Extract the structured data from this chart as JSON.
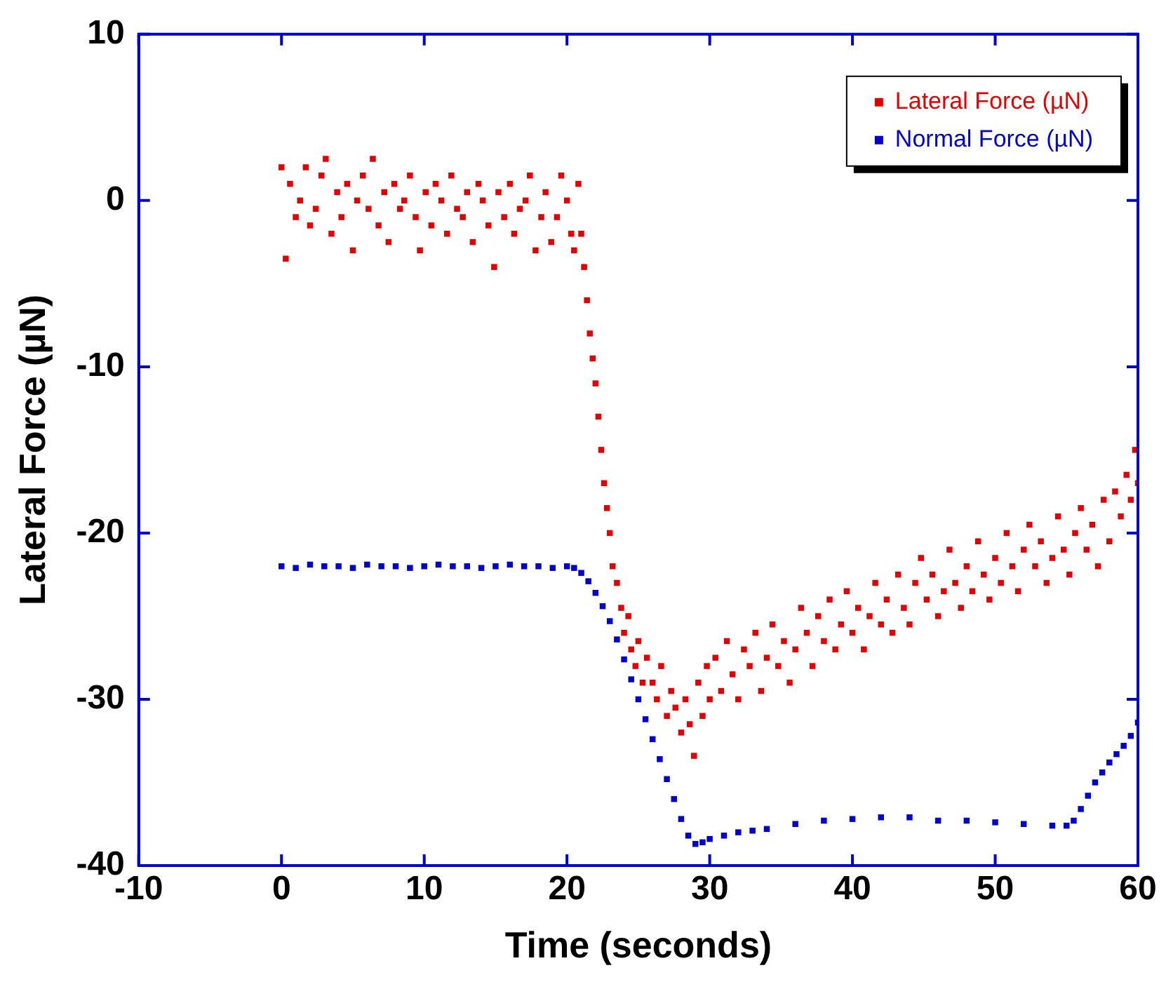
{
  "chart_data": {
    "type": "scatter",
    "xlabel": "Time (seconds)",
    "ylabel": "Lateral Force (µN)",
    "xlim": [
      -10,
      60
    ],
    "xticks": [
      -10,
      0,
      10,
      20,
      30,
      40,
      50,
      60
    ],
    "ylim": [
      -40,
      10
    ],
    "yticks": [
      -40,
      -30,
      -20,
      -10,
      0,
      10
    ],
    "grid": false,
    "legend": "top right",
    "marker": "square",
    "series": [
      {
        "name": "Lateral Force (µN)",
        "color": "#e00000",
        "x": [
          0,
          0.3,
          0.6,
          1,
          1.3,
          1.7,
          2,
          2.4,
          2.8,
          3.1,
          3.5,
          3.9,
          4.2,
          4.6,
          5,
          5.3,
          5.7,
          6.1,
          6.4,
          6.8,
          7.2,
          7.5,
          7.9,
          8.3,
          8.6,
          9,
          9.4,
          9.7,
          10.1,
          10.5,
          10.8,
          11.2,
          11.6,
          11.9,
          12.3,
          12.7,
          13,
          13.4,
          13.8,
          14.1,
          14.5,
          14.9,
          15.2,
          15.6,
          16,
          16.3,
          16.7,
          17.1,
          17.4,
          17.8,
          18.2,
          18.5,
          18.9,
          19.3,
          19.6,
          20,
          20.3,
          20.5,
          20.8,
          21,
          21.2,
          21.4,
          21.6,
          21.8,
          22,
          22.2,
          22.4,
          22.6,
          22.8,
          23,
          23.2,
          23.5,
          23.8,
          24,
          24.3,
          24.5,
          24.8,
          25,
          25.3,
          25.6,
          26,
          26.3,
          26.6,
          27,
          27.3,
          27.6,
          28,
          28.3,
          28.6,
          28.9,
          29.2,
          29.5,
          29.8,
          30,
          30.4,
          30.8,
          31.2,
          31.6,
          32,
          32.4,
          32.8,
          33.2,
          33.6,
          34,
          34.4,
          34.8,
          35.2,
          35.6,
          36,
          36.4,
          36.8,
          37.2,
          37.6,
          38,
          38.4,
          38.8,
          39.2,
          39.6,
          40,
          40.4,
          40.8,
          41.2,
          41.6,
          42,
          42.4,
          42.8,
          43.2,
          43.6,
          44,
          44.4,
          44.8,
          45.2,
          45.6,
          46,
          46.4,
          46.8,
          47.2,
          47.6,
          48,
          48.4,
          48.8,
          49.2,
          49.6,
          50,
          50.4,
          50.8,
          51.2,
          51.6,
          52,
          52.4,
          52.8,
          53.2,
          53.6,
          54,
          54.4,
          54.8,
          55.2,
          55.6,
          56,
          56.4,
          56.8,
          57.2,
          57.6,
          58,
          58.4,
          58.8,
          59.2,
          59.5,
          59.8,
          60
        ],
        "values": [
          2,
          -3.5,
          1,
          -1,
          0,
          2,
          -1.5,
          -0.5,
          1.5,
          2.5,
          -2,
          0.5,
          -1,
          1,
          -3,
          0,
          1.5,
          -0.5,
          2.5,
          -1.5,
          0.5,
          -2.5,
          1,
          -0.5,
          0,
          1.5,
          -1,
          -3,
          0.5,
          -1.5,
          1,
          0,
          -2,
          1.5,
          -0.5,
          -1,
          0.5,
          -2.5,
          1,
          0,
          -1.5,
          -4,
          0.5,
          -1,
          1,
          -2,
          -0.5,
          0,
          1.5,
          -3,
          -1,
          0.5,
          -2.5,
          -1,
          1.5,
          0,
          -2,
          -3,
          1,
          -2,
          -4,
          -6,
          -8,
          -9.5,
          -11,
          -13,
          -15,
          -17,
          -18.5,
          -20,
          -22,
          -23,
          -24.5,
          -26,
          -25,
          -27,
          -28,
          -26.5,
          -29,
          -27.5,
          -29,
          -30,
          -28,
          -31,
          -29.5,
          -30.5,
          -32,
          -30,
          -31.5,
          -33.4,
          -29,
          -31,
          -28,
          -30,
          -27.5,
          -29.5,
          -26.5,
          -28.5,
          -30,
          -27,
          -28,
          -26,
          -29.5,
          -27.5,
          -25.5,
          -28,
          -26.5,
          -29,
          -27,
          -24.5,
          -26,
          -28,
          -25,
          -26.5,
          -24,
          -27,
          -25.5,
          -23.5,
          -26,
          -24.5,
          -27,
          -25,
          -23,
          -25.5,
          -24,
          -26,
          -22.5,
          -24.5,
          -25.5,
          -23,
          -21.5,
          -24,
          -22.5,
          -25,
          -23.5,
          -21,
          -23,
          -24.5,
          -22,
          -23.5,
          -20.5,
          -22.5,
          -24,
          -21.5,
          -23,
          -20,
          -22,
          -23.5,
          -21,
          -19.5,
          -22,
          -20.5,
          -23,
          -21.5,
          -19,
          -21,
          -22.5,
          -20,
          -18.5,
          -21,
          -19.5,
          -22,
          -18,
          -20.5,
          -17.5,
          -19,
          -16.5,
          -18,
          -15,
          -17
        ]
      },
      {
        "name": "Normal Force (µN)",
        "color": "#0000cc",
        "x": [
          0,
          1,
          2,
          3,
          4,
          5,
          6,
          7,
          8,
          9,
          10,
          11,
          12,
          13,
          14,
          15,
          16,
          17,
          18,
          19,
          20,
          20.5,
          21,
          21.5,
          22,
          22.5,
          23,
          23.5,
          24,
          24.5,
          25,
          25.5,
          26,
          26.5,
          27,
          27.5,
          28,
          28.5,
          29,
          29.5,
          30,
          31,
          32,
          33,
          34,
          36,
          38,
          40,
          42,
          44,
          46,
          48,
          50,
          52,
          54,
          55,
          55.5,
          56,
          56.5,
          57,
          57.5,
          58,
          58.5,
          59,
          59.5,
          60
        ],
        "values": [
          -22,
          -22.1,
          -21.9,
          -22,
          -22,
          -22.1,
          -21.9,
          -22,
          -22,
          -22.1,
          -22,
          -21.9,
          -22,
          -22,
          -22.1,
          -22,
          -21.9,
          -22,
          -22,
          -22.1,
          -22,
          -22.1,
          -22.4,
          -22.9,
          -23.6,
          -24.4,
          -25.3,
          -26.4,
          -27.6,
          -28.8,
          -30,
          -31.2,
          -32.4,
          -33.6,
          -34.8,
          -36,
          -37.2,
          -38.2,
          -38.7,
          -38.6,
          -38.4,
          -38.2,
          -38,
          -37.9,
          -37.8,
          -37.5,
          -37.3,
          -37.2,
          -37.1,
          -37.1,
          -37.3,
          -37.3,
          -37.4,
          -37.5,
          -37.6,
          -37.6,
          -37.3,
          -36.6,
          -35.8,
          -35,
          -34.4,
          -33.8,
          -33.3,
          -32.8,
          -32.2,
          -31.4
        ]
      }
    ]
  }
}
